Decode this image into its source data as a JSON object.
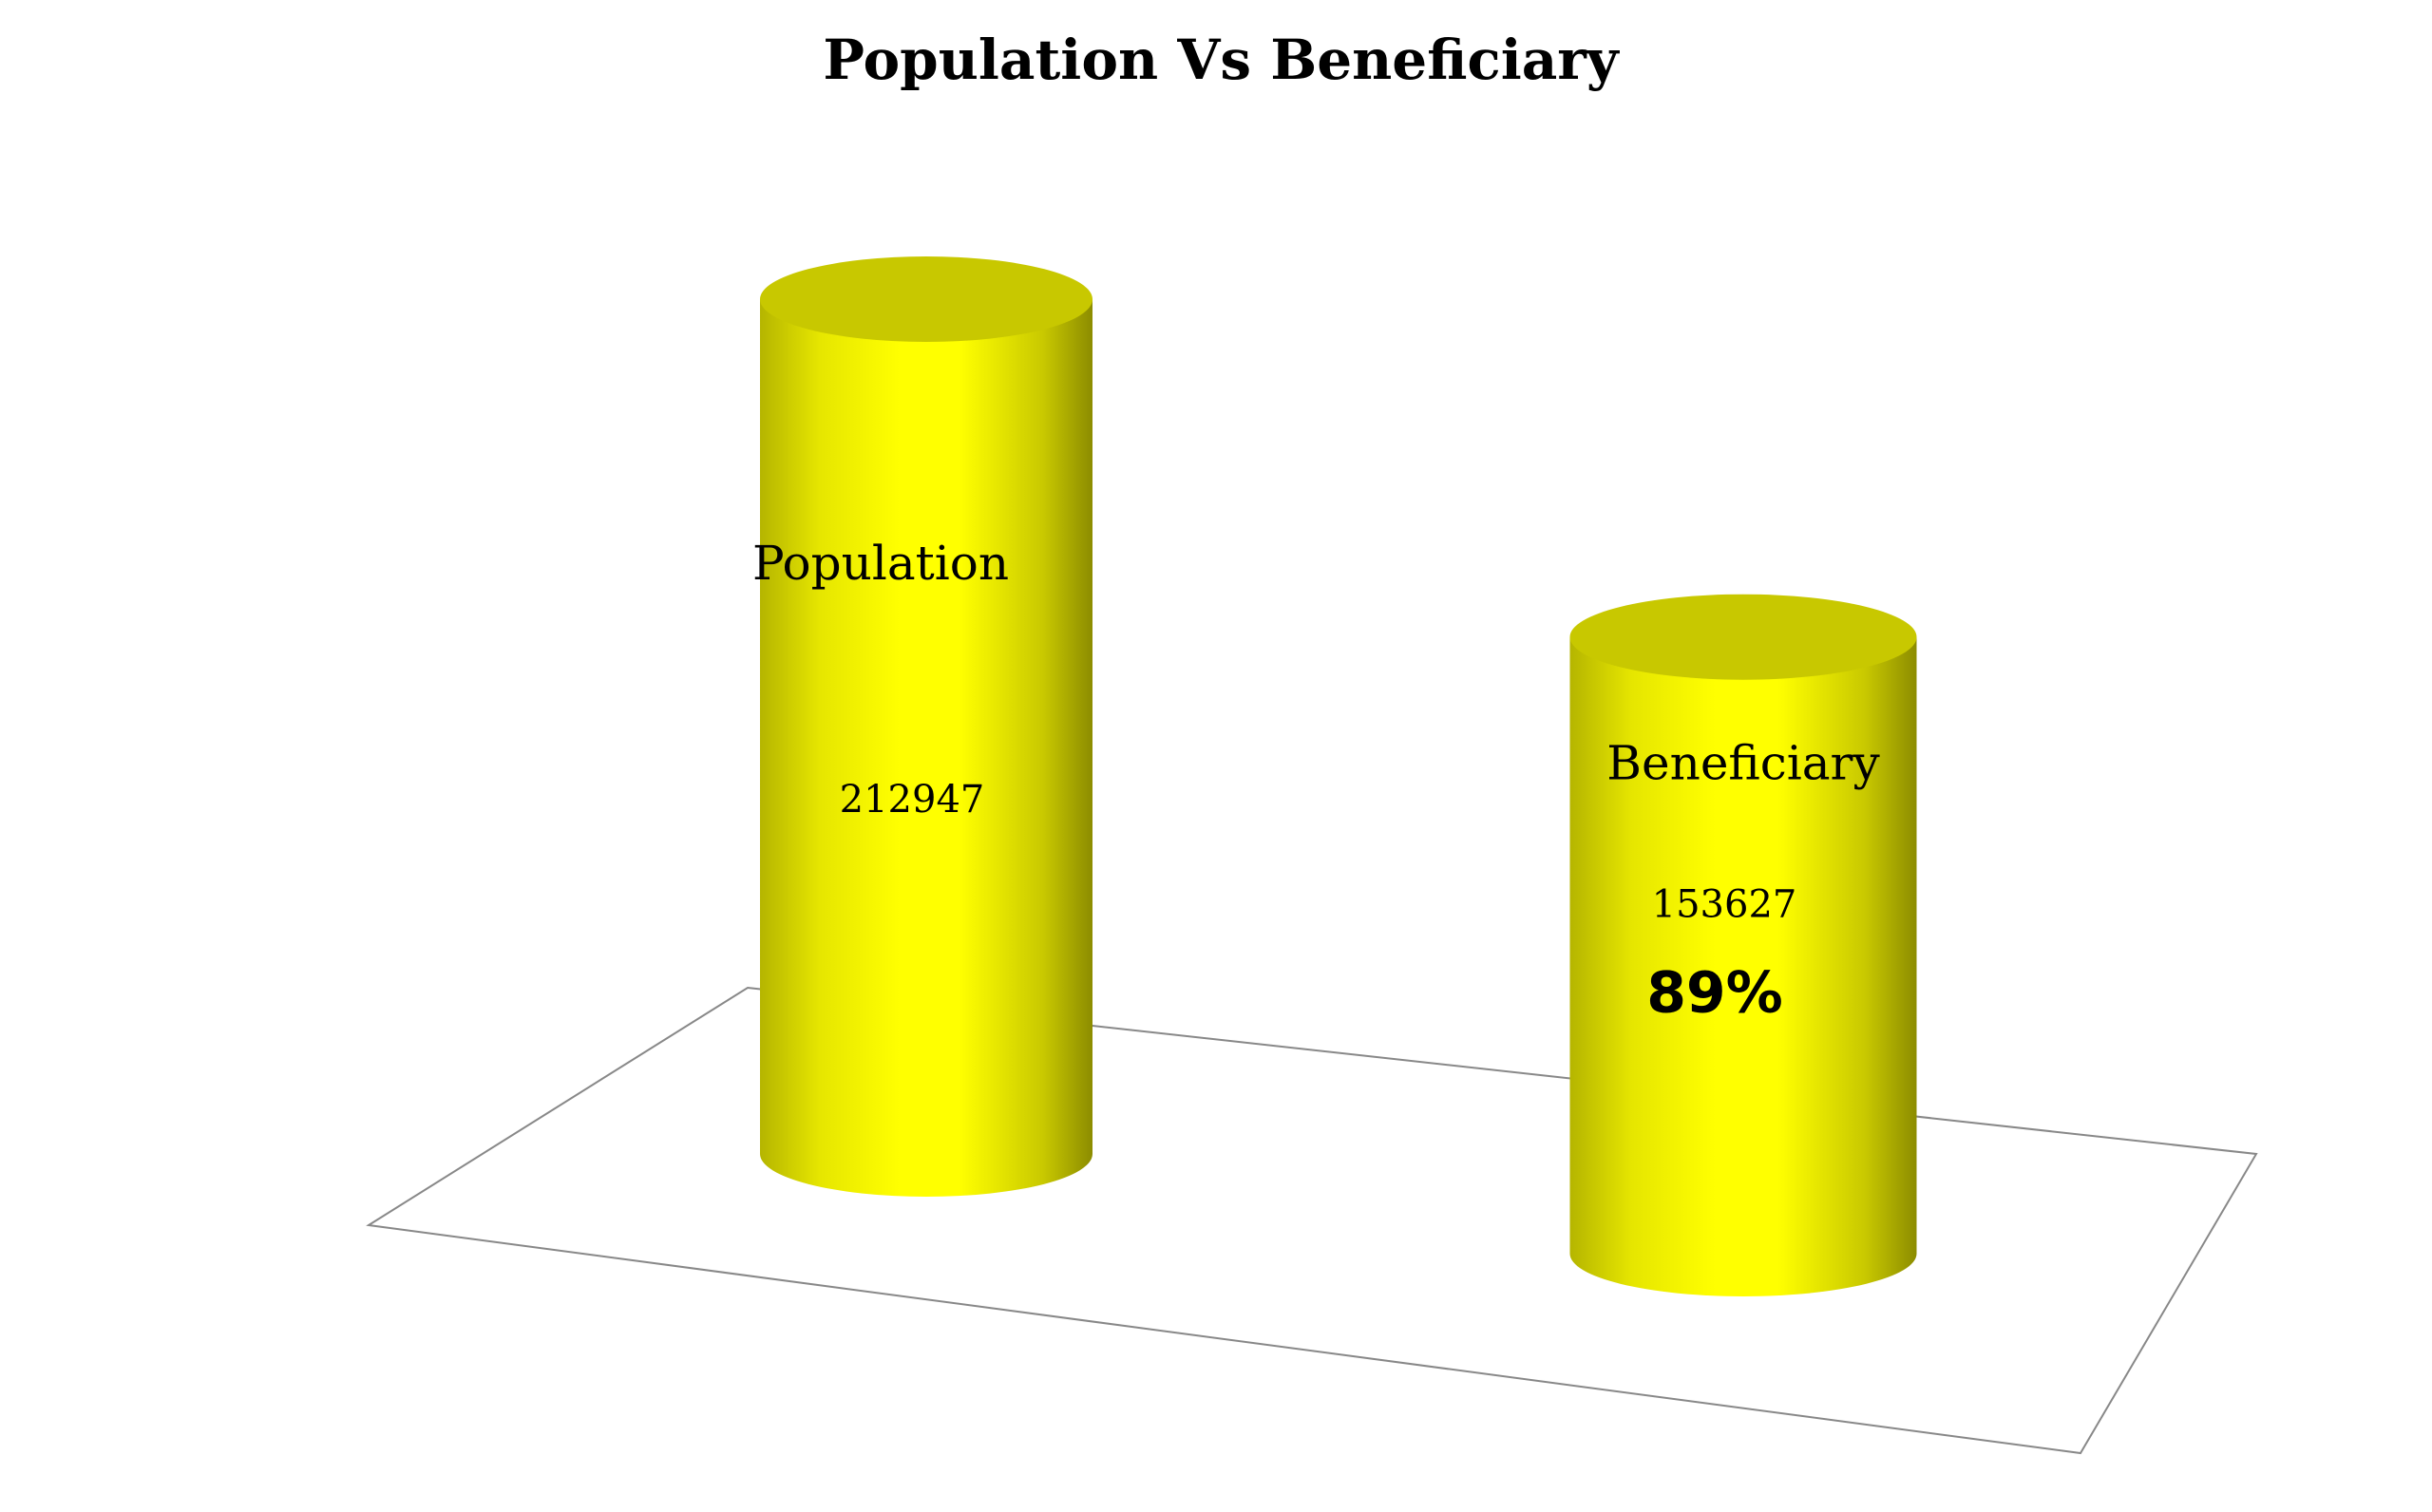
{
  "chart_data": {
    "type": "bar",
    "style": "3d-cylinder",
    "title": "Population Vs Beneficiary",
    "categories": [
      "Population",
      "Beneficiary"
    ],
    "values": [
      212947,
      153627
    ],
    "value_labels": [
      "212947",
      "153627"
    ],
    "annotations": [
      "",
      "89%"
    ],
    "xlabel": "",
    "ylabel": "",
    "grid": false,
    "legend": "none",
    "ylim": [
      0,
      212947
    ],
    "colors": {
      "bar": "#ffff00",
      "bar_top": "#c8c800",
      "bar_shade": "#9a9a00",
      "floor_line": "#888888"
    }
  }
}
